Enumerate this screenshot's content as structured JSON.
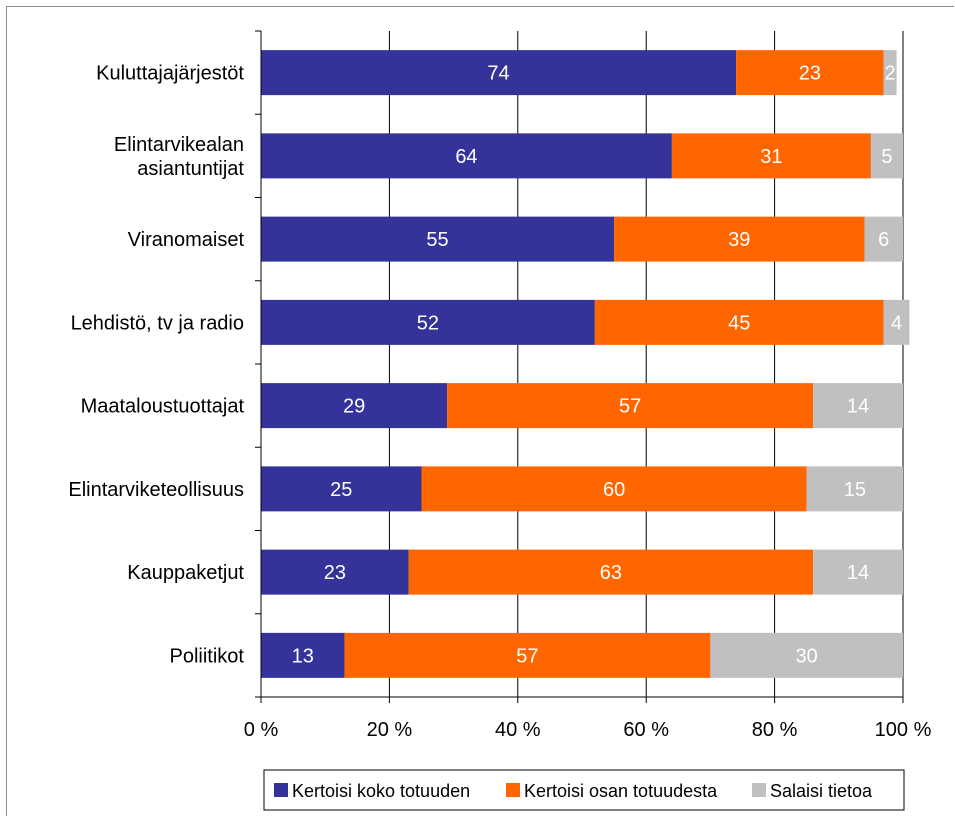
{
  "chart_data": {
    "type": "bar",
    "orientation": "horizontal",
    "stacked": true,
    "categories": [
      "Kuluttajajärjestöt",
      "Elintarvikealan asiantuntijat",
      "Viranomaiset",
      "Lehdistö, tv ja radio",
      "Maataloustuottajat",
      "Elintarviketeollisuus",
      "Kauppaketjut",
      "Poliitikot"
    ],
    "category_lines": [
      [
        "Kuluttajajärjestöt"
      ],
      [
        "Elintarvikealan",
        "asiantuntijat"
      ],
      [
        "Viranomaiset"
      ],
      [
        "Lehdistö, tv ja radio"
      ],
      [
        "Maataloustuottajat"
      ],
      [
        "Elintarviketeollisuus"
      ],
      [
        "Kauppaketjut"
      ],
      [
        "Poliitikot"
      ]
    ],
    "series": [
      {
        "name": "Kertoisi koko totuuden",
        "color": "#333399",
        "values": [
          74,
          64,
          55,
          52,
          29,
          25,
          23,
          13
        ]
      },
      {
        "name": "Kertoisi osan totuudesta",
        "color": "#ff6600",
        "values": [
          23,
          31,
          39,
          45,
          57,
          60,
          63,
          57
        ]
      },
      {
        "name": "Salaisi tietoa",
        "color": "#c0c0c0",
        "values": [
          2,
          5,
          6,
          4,
          14,
          15,
          14,
          30
        ]
      }
    ],
    "xlim": [
      0,
      100
    ],
    "x_ticks": [
      0,
      20,
      40,
      60,
      80,
      100
    ],
    "x_tick_labels": [
      "0 %",
      "20 %",
      "40 %",
      "60 %",
      "80 %",
      "100 %"
    ],
    "vertical_gridlines": true,
    "legend_position": "bottom",
    "data_label_color": "#ffffff",
    "axis_text_color": "#000000",
    "gridline_color": "#000000"
  }
}
